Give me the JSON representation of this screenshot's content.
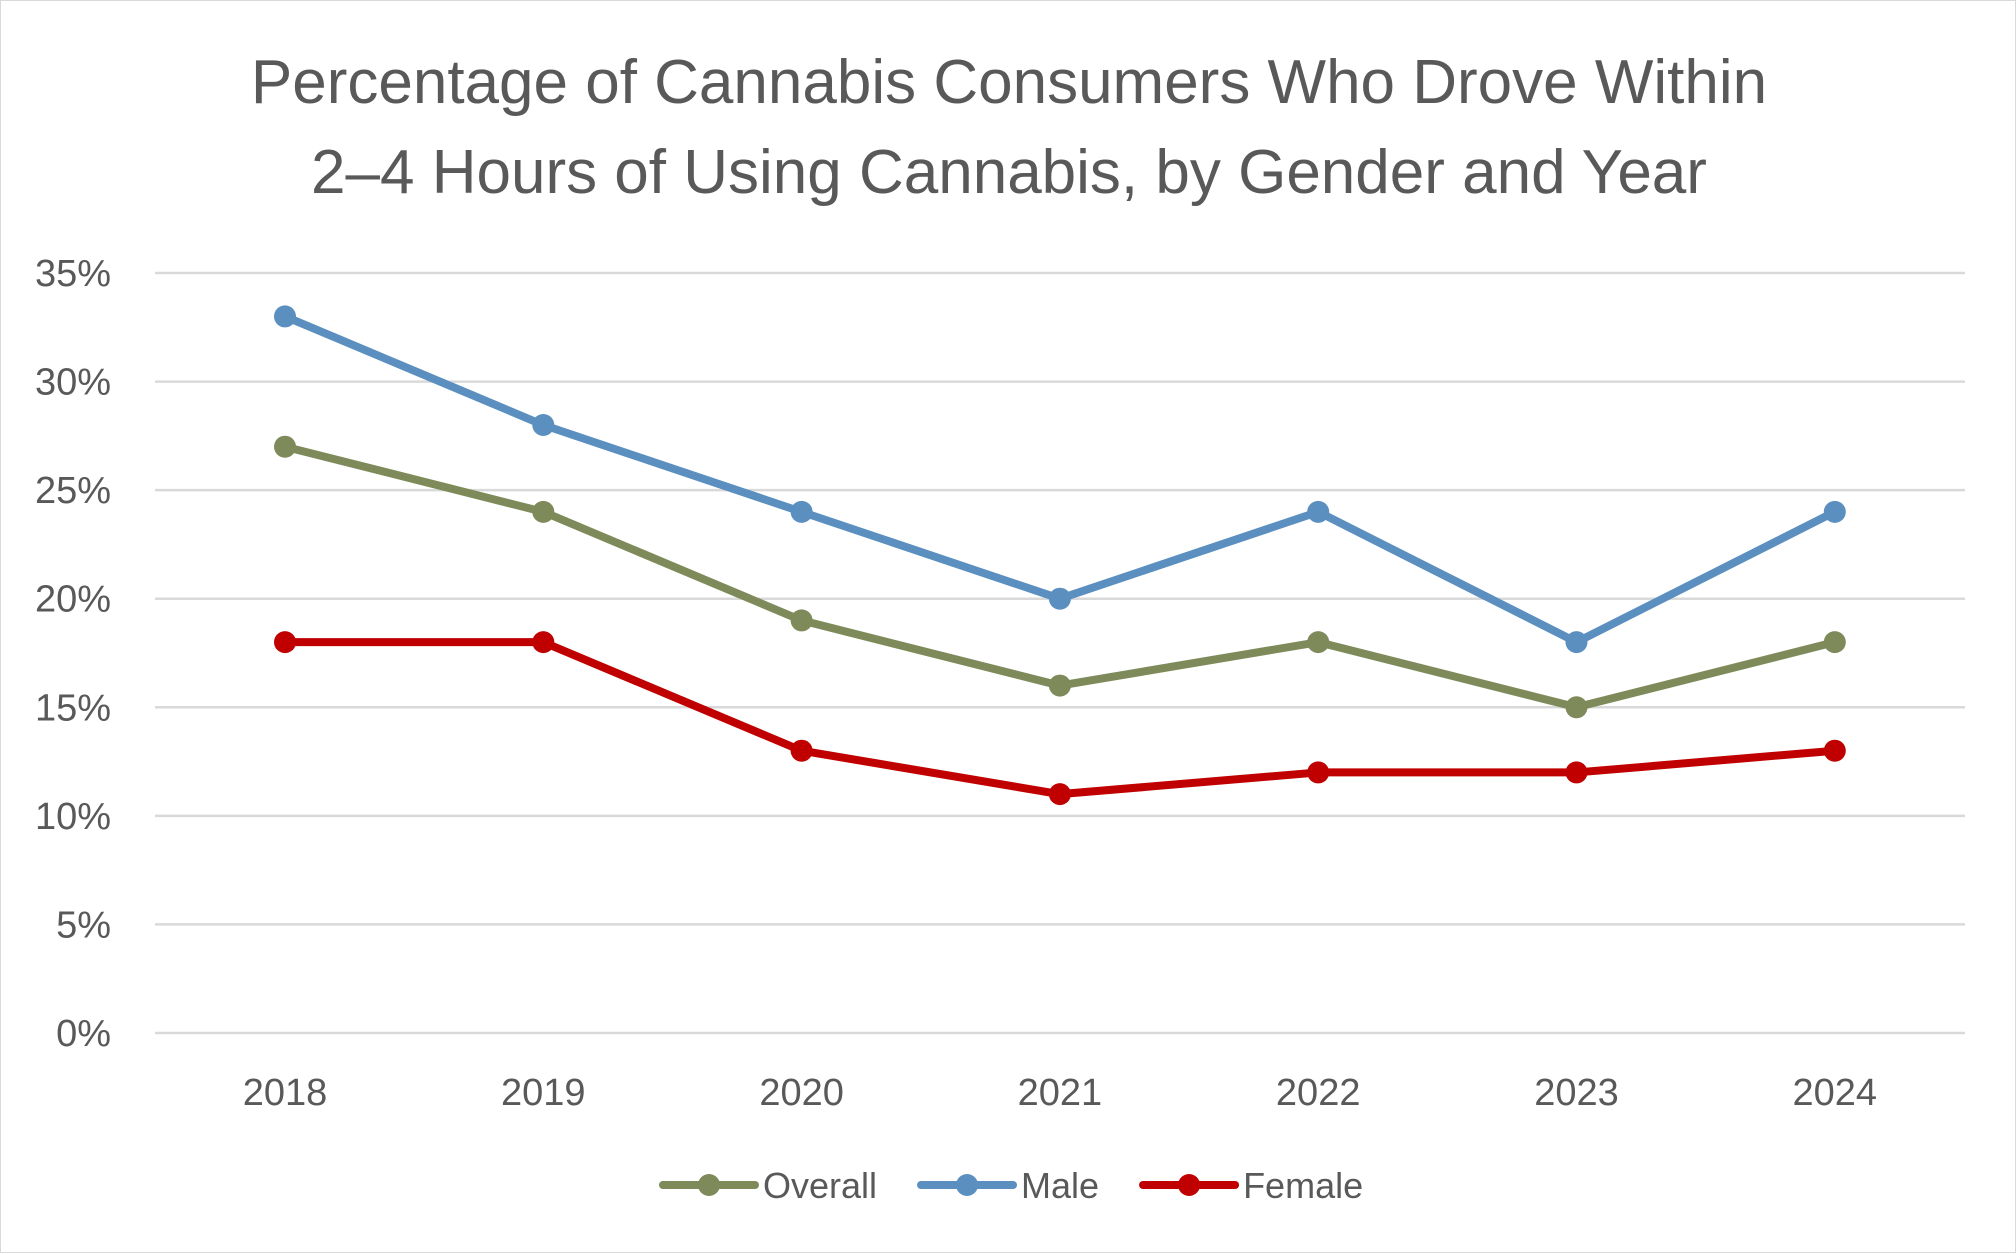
{
  "chart_data": {
    "type": "line",
    "title_lines": [
      "Percentage of Cannabis Consumers Who Drove Within",
      "2–4 Hours of Using Cannabis, by Gender and Year"
    ],
    "categories": [
      "2018",
      "2019",
      "2020",
      "2021",
      "2022",
      "2023",
      "2024"
    ],
    "ylim": [
      0,
      35
    ],
    "yticks": [
      0,
      5,
      10,
      15,
      20,
      25,
      30,
      35
    ],
    "ytick_labels": [
      "0%",
      "5%",
      "10%",
      "15%",
      "20%",
      "25%",
      "30%",
      "35%"
    ],
    "grid": true,
    "legend_position": "bottom",
    "series": [
      {
        "name": "Overall",
        "color": "#7f8a5a",
        "values": [
          27,
          24,
          19,
          16,
          18,
          15,
          18
        ]
      },
      {
        "name": "Male",
        "color": "#5b8fbf",
        "values": [
          33,
          28,
          24,
          20,
          24,
          18,
          24
        ]
      },
      {
        "name": "Female",
        "color": "#c00000",
        "values": [
          18,
          18,
          13,
          11,
          12,
          12,
          13
        ]
      }
    ]
  }
}
